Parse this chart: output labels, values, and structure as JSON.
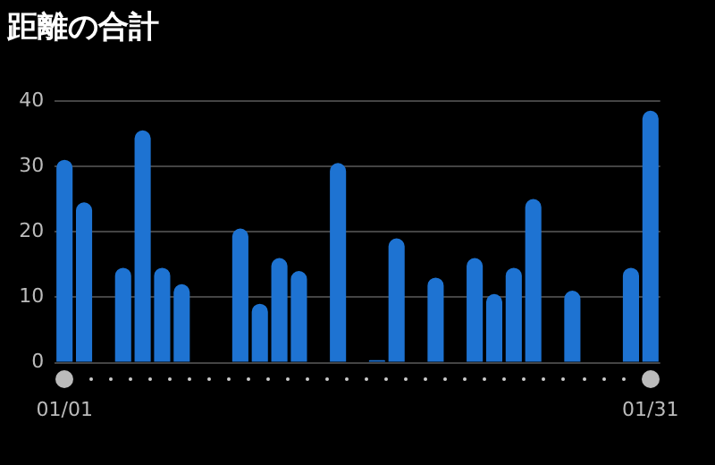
{
  "chart_data": {
    "type": "bar",
    "title": "距離の合計",
    "categories": [
      "01/01",
      null,
      null,
      null,
      null,
      null,
      null,
      null,
      null,
      null,
      null,
      null,
      null,
      null,
      null,
      null,
      null,
      null,
      null,
      null,
      null,
      null,
      null,
      null,
      null,
      null,
      null,
      null,
      null,
      null,
      "01/31"
    ],
    "values": [
      31,
      24.5,
      null,
      14.5,
      35.5,
      14.5,
      12,
      null,
      null,
      20.5,
      9,
      16,
      14,
      null,
      30.5,
      null,
      0.4,
      19,
      null,
      13,
      null,
      16,
      10.5,
      14.5,
      25,
      null,
      11,
      null,
      null,
      14.5,
      38.5
    ],
    "color": "#1e73d2",
    "ylim": [
      0,
      40
    ],
    "yticks": [
      0,
      10,
      20,
      30,
      40
    ],
    "grid": "y",
    "legend": false
  }
}
